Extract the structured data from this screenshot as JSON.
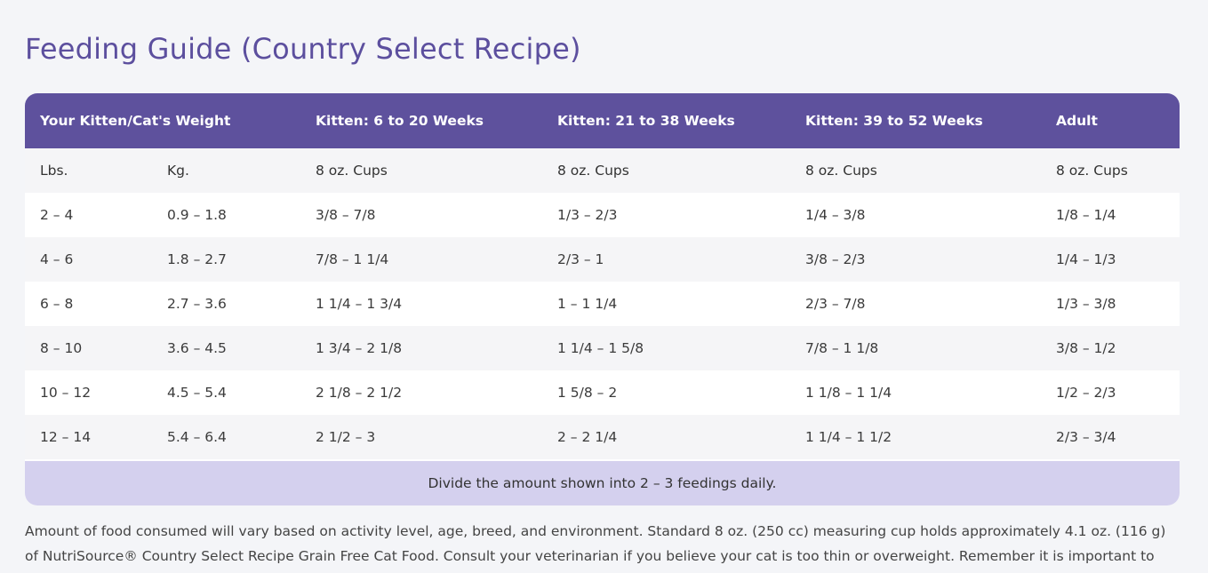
{
  "title": "Feeding Guide (Country Select Recipe)",
  "table": {
    "header": [
      "Your Kitten/Cat's Weight",
      "Kitten: 6 to 20 Weeks",
      "Kitten: 21 to 38 Weeks",
      "Kitten: 39 to 52 Weeks",
      "Adult"
    ],
    "subheader": [
      "Lbs.",
      "Kg.",
      "8 oz. Cups",
      "8 oz. Cups",
      "8 oz. Cups",
      "8 oz. Cups"
    ],
    "rows": [
      [
        "2 – 4",
        "0.9 – 1.8",
        "3/8 – 7/8",
        "1/3 – 2/3",
        "1/4 – 3/8",
        "1/8 – 1/4"
      ],
      [
        "4 – 6",
        "1.8 – 2.7",
        "7/8 – 1 1/4",
        "2/3 – 1",
        "3/8 – 2/3",
        "1/4 – 1/3"
      ],
      [
        "6 – 8",
        "2.7 – 3.6",
        "1 1/4 – 1 3/4",
        "1 – 1 1/4",
        "2/3 – 7/8",
        "1/3 – 3/8"
      ],
      [
        "8 – 10",
        "3.6 – 4.5",
        "1 3/4 – 2 1/8",
        "1 1/4 – 1 5/8",
        "7/8 – 1 1/8",
        "3/8 – 1/2"
      ],
      [
        "10 – 12",
        "4.5 – 5.4",
        "2 1/8 – 2 1/2",
        "1 5/8 – 2",
        "1 1/8 – 1 1/4",
        "1/2 – 2/3"
      ],
      [
        "12 – 14",
        "5.4 – 6.4",
        "2 1/2 – 3",
        "2 – 2 1/4",
        "1 1/4 – 1 1/2",
        "2/3 – 3/4"
      ]
    ],
    "footer": "Divide the amount shown into 2 – 3 feedings daily."
  },
  "disclaimer": "Amount of food consumed will vary based on activity level, age, breed, and environment. Standard 8 oz. (250 cc) measuring cup holds approximately 4.1 oz. (116 g) of NutriSource® Country Select Recipe Grain Free Cat Food. Consult your veterinarian if you believe your cat is too thin or overweight. Remember it is important to"
}
